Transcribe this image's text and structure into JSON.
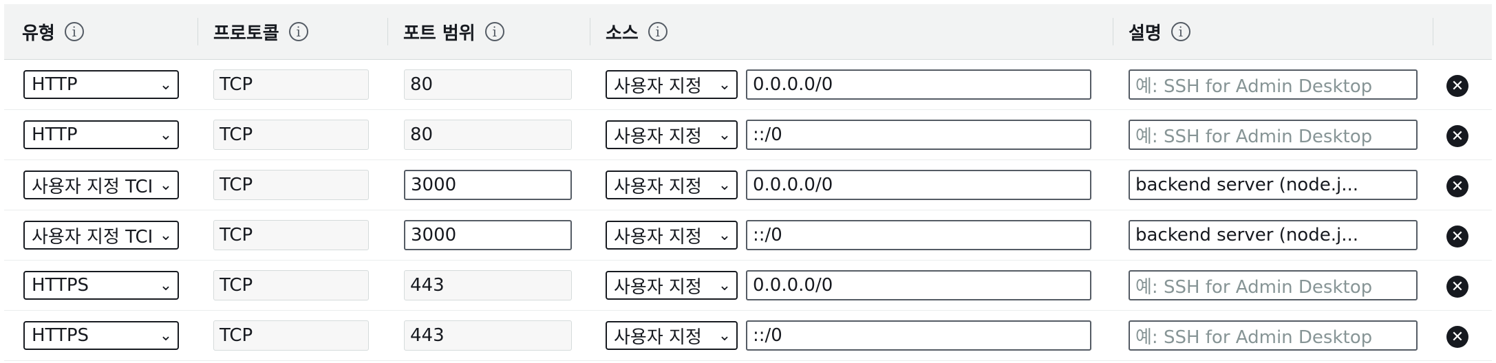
{
  "headers": {
    "type": "유형",
    "protocol": "프로토콜",
    "port_range": "포트 범위",
    "source": "소스",
    "description": "설명",
    "info_glyph": "i"
  },
  "rows": [
    {
      "type": "HTTP",
      "protocol": "TCP",
      "port": "80",
      "source_mode": "사용자 지정",
      "source_value": "0.0.0.0/0",
      "description": "예: SSH for Admin Desktop",
      "description_is_placeholder": true,
      "port_editable": false
    },
    {
      "type": "HTTP",
      "protocol": "TCP",
      "port": "80",
      "source_mode": "사용자 지정",
      "source_value": "::/0",
      "description": "예: SSH for Admin Desktop",
      "description_is_placeholder": true,
      "port_editable": false
    },
    {
      "type": "사용자 지정 TCI",
      "protocol": "TCP",
      "port": "3000",
      "source_mode": "사용자 지정",
      "source_value": "0.0.0.0/0",
      "description": "backend server (node.j...",
      "description_is_placeholder": false,
      "port_editable": true
    },
    {
      "type": "사용자 지정 TCI",
      "protocol": "TCP",
      "port": "3000",
      "source_mode": "사용자 지정",
      "source_value": "::/0",
      "description": "backend server (node.j...",
      "description_is_placeholder": false,
      "port_editable": true
    },
    {
      "type": "HTTPS",
      "protocol": "TCP",
      "port": "443",
      "source_mode": "사용자 지정",
      "source_value": "0.0.0.0/0",
      "description": "예: SSH for Admin Desktop",
      "description_is_placeholder": true,
      "port_editable": false
    },
    {
      "type": "HTTPS",
      "protocol": "TCP",
      "port": "443",
      "source_mode": "사용자 지정",
      "source_value": "::/0",
      "description": "예: SSH for Admin Desktop",
      "description_is_placeholder": true,
      "port_editable": false
    }
  ],
  "icons": {
    "info": "info-circle-icon",
    "chevron": "chevron-down-icon",
    "remove": "remove-circle-icon"
  },
  "colors": {
    "header_bg": "#f2f3f3",
    "border": "#d5dbdb",
    "text": "#16191f",
    "placeholder": "#879596"
  }
}
